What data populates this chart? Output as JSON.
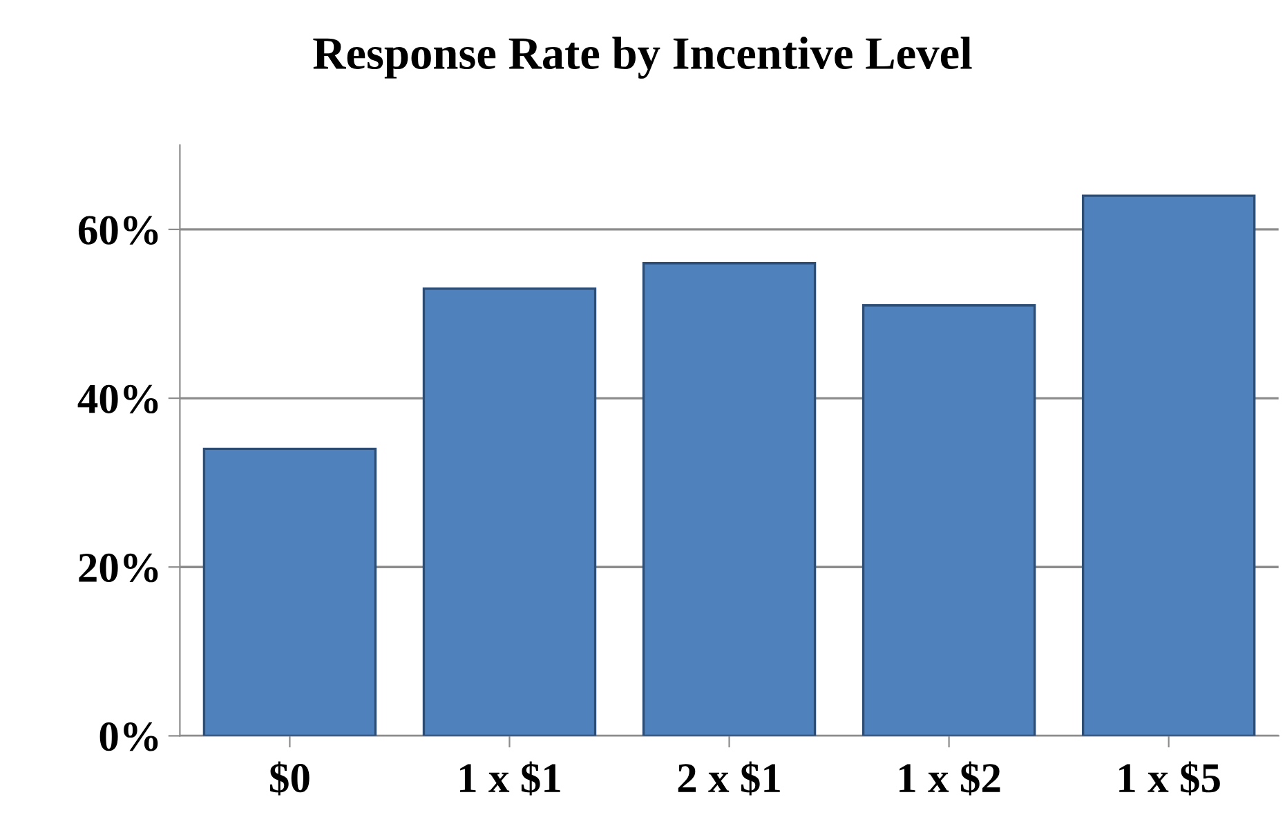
{
  "chart_data": {
    "type": "bar",
    "title": "Response Rate by Incentive Level",
    "categories": [
      "$0",
      "1 x $1",
      "2 x $1",
      "1 x $2",
      "1 x $5"
    ],
    "values": [
      34,
      53,
      56,
      51,
      64
    ],
    "color": "#4f81bd",
    "ylim": [
      0,
      70
    ],
    "yticks": [
      {
        "value": 0,
        "label": "0%"
      },
      {
        "value": 20,
        "label": "20%"
      },
      {
        "value": 40,
        "label": "40%"
      },
      {
        "value": 60,
        "label": "60%"
      }
    ],
    "grid": "y",
    "legend": false
  }
}
